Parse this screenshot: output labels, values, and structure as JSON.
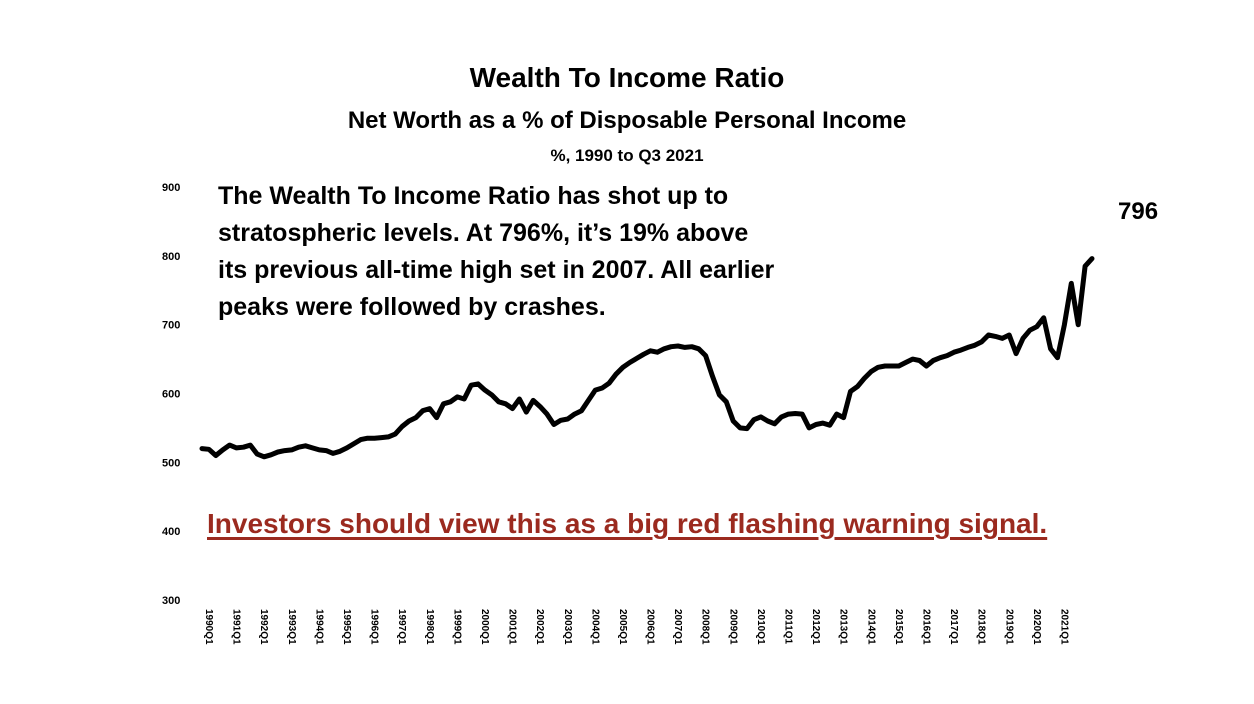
{
  "header": {
    "title": "Wealth To Income Ratio",
    "subtitle": "Net Worth as a % of Disposable Personal Income",
    "units": "%, 1990 to Q3 2021"
  },
  "annotations": {
    "callout": "The Wealth To Income Ratio has shot up to stratospheric levels.  At 796%, it’s 19% above its previous all-time high set in 2007.  All earlier peaks were followed by crashes.",
    "last_value_label": "796",
    "warning": "Investors should view this as a big red flashing warning signal.",
    "warning_color": "#9b2a1f"
  },
  "chart_data": {
    "type": "line",
    "title": "Wealth To Income Ratio",
    "subtitle": "Net Worth as a % of Disposable Personal Income",
    "units": "%, 1990 to Q3 2021",
    "xlabel": "",
    "ylabel": "",
    "ylim": [
      300,
      900
    ],
    "yticks": [
      300,
      400,
      500,
      600,
      700,
      800,
      900
    ],
    "grid": false,
    "legend": "none",
    "line_color": "#000000",
    "x_tick_labels": [
      "1990Q1",
      "1991Q1",
      "1992Q1",
      "1993Q1",
      "1994Q1",
      "1995Q1",
      "1996Q1",
      "1997Q1",
      "1998Q1",
      "1999Q1",
      "2000Q1",
      "2001Q1",
      "2002Q1",
      "2003Q1",
      "2004Q1",
      "2005Q1",
      "2006Q1",
      "2007Q1",
      "2008Q1",
      "2009Q1",
      "2010Q1",
      "2011Q1",
      "2012Q1",
      "2013Q1",
      "2014Q1",
      "2015Q1",
      "2016Q1",
      "2017Q1",
      "2018Q1",
      "2019Q1",
      "2020Q1",
      "2021Q1"
    ],
    "series": [
      {
        "values": [
          520,
          519,
          510,
          518,
          525,
          521,
          522,
          525,
          512,
          508,
          511,
          515,
          517,
          518,
          522,
          524,
          521,
          518,
          517,
          513,
          516,
          521,
          527,
          533,
          535,
          535,
          536,
          537,
          541,
          552,
          560,
          565,
          575,
          578,
          565,
          585,
          588,
          595,
          592,
          612,
          614,
          605,
          598,
          588,
          585,
          578,
          592,
          573,
          590,
          581,
          570,
          555,
          561,
          563,
          570,
          575,
          590,
          605,
          608,
          615,
          628,
          638,
          645,
          651,
          657,
          662,
          660,
          665,
          668,
          669,
          667,
          668,
          665,
          655,
          625,
          598,
          588,
          560,
          550,
          549,
          562,
          566,
          560,
          556,
          566,
          570,
          571,
          570,
          550,
          555,
          557,
          554,
          570,
          565,
          603,
          610,
          622,
          632,
          638,
          640,
          640,
          640,
          645,
          650,
          648,
          640,
          648,
          652,
          655,
          660,
          663,
          667,
          670,
          675,
          685,
          683,
          680,
          685,
          658,
          680,
          692,
          697,
          710,
          665,
          652,
          700,
          760,
          700,
          785,
          796
        ]
      }
    ]
  }
}
